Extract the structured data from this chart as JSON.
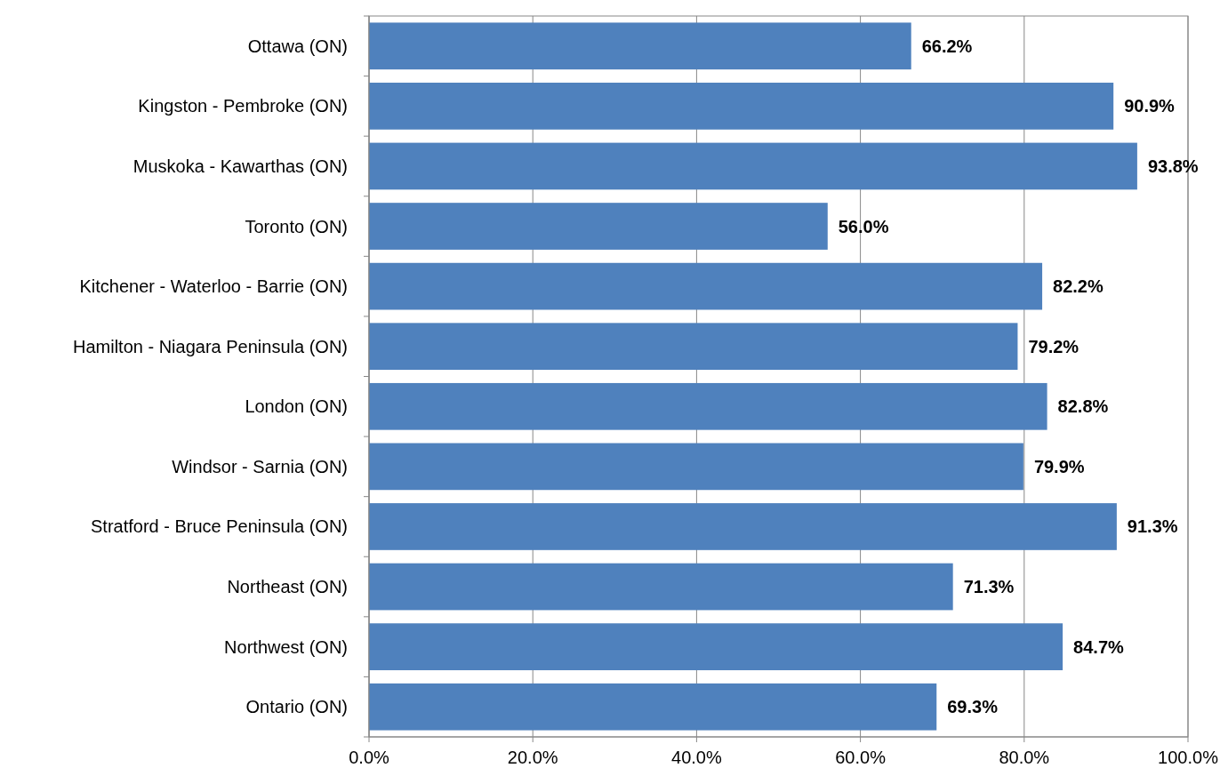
{
  "chart_data": {
    "type": "bar",
    "orientation": "horizontal",
    "categories": [
      "Ottawa (ON)",
      "Kingston - Pembroke (ON)",
      "Muskoka - Kawarthas (ON)",
      "Toronto (ON)",
      "Kitchener - Waterloo - Barrie (ON)",
      "Hamilton - Niagara Peninsula (ON)",
      "London (ON)",
      "Windsor - Sarnia (ON)",
      "Stratford - Bruce Peninsula (ON)",
      "Northeast (ON)",
      "Northwest (ON)",
      "Ontario (ON)"
    ],
    "values": [
      66.2,
      90.9,
      93.8,
      56.0,
      82.2,
      79.2,
      82.8,
      79.9,
      91.3,
      71.3,
      84.7,
      69.3
    ],
    "value_labels": [
      "66.2%",
      "90.9%",
      "93.8%",
      "56.0%",
      "82.2%",
      "79.2%",
      "82.8%",
      "79.9%",
      "91.3%",
      "71.3%",
      "84.7%",
      "69.3%"
    ],
    "color": "#4f81bd",
    "xlim": [
      0,
      100
    ],
    "xticks": [
      {
        "value": 0,
        "label": "0.0%"
      },
      {
        "value": 20,
        "label": "20.0%"
      },
      {
        "value": 40,
        "label": "40.0%"
      },
      {
        "value": 60,
        "label": "60.0%"
      },
      {
        "value": 80,
        "label": "80.0%"
      },
      {
        "value": 100,
        "label": "100.0%"
      }
    ],
    "grid": "x"
  }
}
